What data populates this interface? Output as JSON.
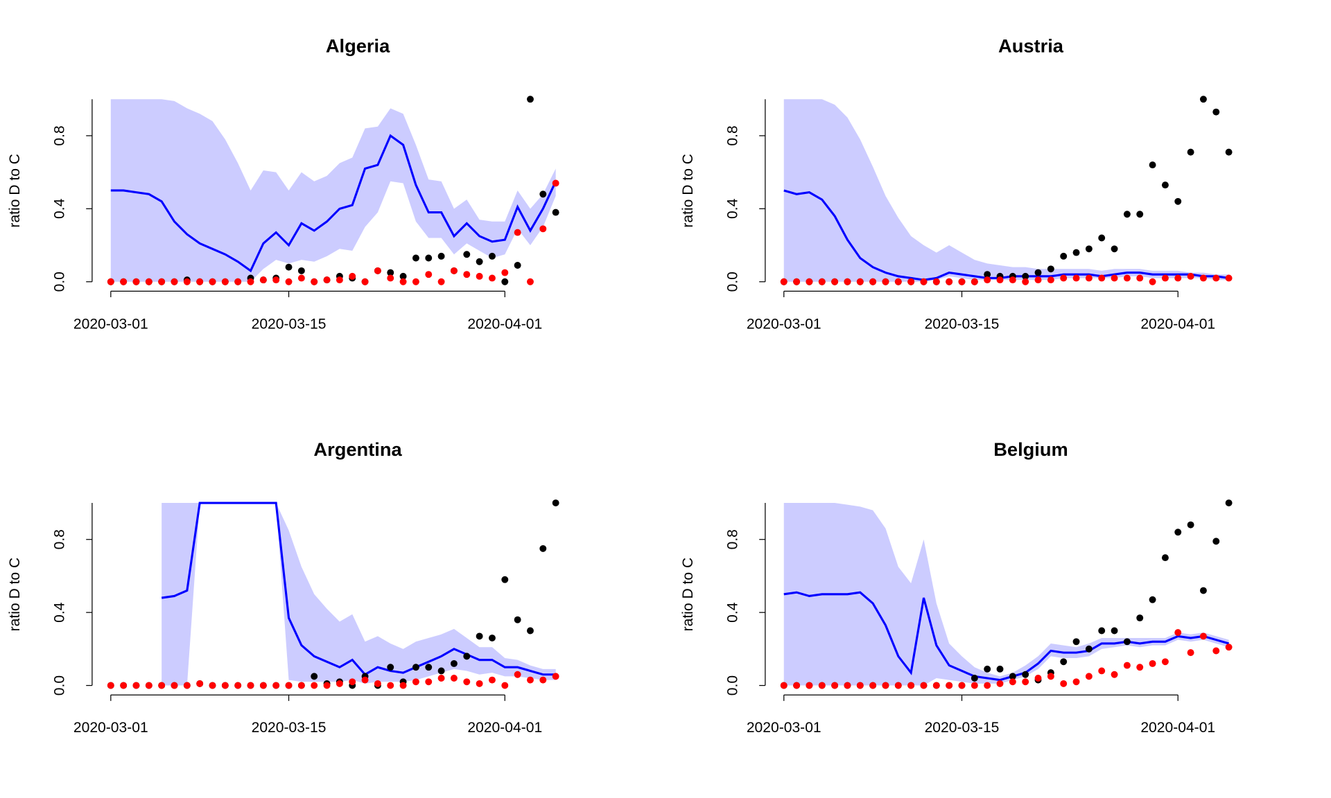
{
  "chart_data": [
    {
      "type": "line",
      "title": "Algeria",
      "y_label": "ratio D to C",
      "x": [
        "2020-03-01",
        "2020-03-02",
        "2020-03-03",
        "2020-03-04",
        "2020-03-05",
        "2020-03-06",
        "2020-03-07",
        "2020-03-08",
        "2020-03-09",
        "2020-03-10",
        "2020-03-11",
        "2020-03-12",
        "2020-03-13",
        "2020-03-14",
        "2020-03-15",
        "2020-03-16",
        "2020-03-17",
        "2020-03-18",
        "2020-03-19",
        "2020-03-20",
        "2020-03-21",
        "2020-03-22",
        "2020-03-23",
        "2020-03-24",
        "2020-03-25",
        "2020-03-26",
        "2020-03-27",
        "2020-03-28",
        "2020-03-29",
        "2020-03-30",
        "2020-03-31",
        "2020-04-01",
        "2020-04-02",
        "2020-04-03",
        "2020-04-04",
        "2020-04-05"
      ],
      "xlim": [
        "2020-03-01",
        "2020-04-05"
      ],
      "xticks": [
        "2020-03-01",
        "2020-03-15",
        "2020-04-01"
      ],
      "ylim": [
        0,
        1
      ],
      "yticks": [
        {
          "value": 0,
          "label": "0.0"
        },
        0.4,
        0.8
      ],
      "band": {
        "color": "#ccccff",
        "upper": [
          1,
          1,
          1,
          1,
          1,
          0.99,
          0.95,
          0.92,
          0.88,
          0.78,
          0.65,
          0.5,
          0.61,
          0.6,
          0.5,
          0.6,
          0.55,
          0.58,
          0.65,
          0.68,
          0.84,
          0.85,
          0.95,
          0.92,
          0.75,
          0.56,
          0.55,
          0.4,
          0.45,
          0.34,
          0.33,
          0.33,
          0.5,
          0.4,
          0.48,
          0.62
        ],
        "lower": [
          0,
          0,
          0,
          0,
          0,
          0,
          0,
          0,
          0,
          0,
          0,
          0,
          0.07,
          0.12,
          0.1,
          0.12,
          0.11,
          0.14,
          0.18,
          0.17,
          0.3,
          0.38,
          0.55,
          0.54,
          0.33,
          0.24,
          0.24,
          0.15,
          0.21,
          0.17,
          0.13,
          0.15,
          0.29,
          0.2,
          0.3,
          0.47
        ]
      },
      "series": [
        {
          "type": "line",
          "color": "#0000ff",
          "values": [
            0.5,
            0.5,
            0.49,
            0.48,
            0.44,
            0.33,
            0.26,
            0.21,
            0.18,
            0.15,
            0.11,
            0.06,
            0.21,
            0.27,
            0.2,
            0.32,
            0.28,
            0.33,
            0.4,
            0.42,
            0.62,
            0.64,
            0.8,
            0.75,
            0.53,
            0.38,
            0.38,
            0.25,
            0.32,
            0.25,
            0.22,
            0.23,
            0.41,
            0.28,
            0.4,
            0.55
          ]
        },
        {
          "type": "scatter",
          "color": "#000000",
          "values": [
            0,
            0,
            0,
            0,
            0,
            0,
            0.01,
            0,
            0,
            0,
            0,
            0.02,
            0.01,
            0.02,
            0.08,
            0.06,
            0,
            0.01,
            0.03,
            0.02,
            0,
            0.06,
            0.05,
            0.03,
            0.13,
            0.13,
            0.14,
            0.06,
            0.15,
            0.11,
            0.14,
            0,
            0.09,
            1,
            0.48,
            0.38
          ]
        },
        {
          "type": "scatter",
          "color": "#ff0000",
          "values": [
            0,
            0,
            0,
            0,
            0,
            0,
            0,
            0,
            0,
            0,
            0,
            0,
            0.01,
            0.01,
            0,
            0.02,
            0,
            0.01,
            0.01,
            0.03,
            0,
            0.06,
            0.02,
            0,
            0,
            0.04,
            0,
            0.06,
            0.04,
            0.03,
            0.02,
            0.05,
            0.27,
            0,
            0.29,
            0.54
          ]
        }
      ]
    },
    {
      "type": "line",
      "title": "Austria",
      "y_label": "ratio D to C",
      "x": [
        "2020-03-01",
        "2020-03-02",
        "2020-03-03",
        "2020-03-04",
        "2020-03-05",
        "2020-03-06",
        "2020-03-07",
        "2020-03-08",
        "2020-03-09",
        "2020-03-10",
        "2020-03-11",
        "2020-03-12",
        "2020-03-13",
        "2020-03-14",
        "2020-03-15",
        "2020-03-16",
        "2020-03-17",
        "2020-03-18",
        "2020-03-19",
        "2020-03-20",
        "2020-03-21",
        "2020-03-22",
        "2020-03-23",
        "2020-03-24",
        "2020-03-25",
        "2020-03-26",
        "2020-03-27",
        "2020-03-28",
        "2020-03-29",
        "2020-03-30",
        "2020-03-31",
        "2020-04-01",
        "2020-04-02",
        "2020-04-03",
        "2020-04-04",
        "2020-04-05"
      ],
      "xlim": [
        "2020-03-01",
        "2020-04-05"
      ],
      "xticks": [
        "2020-03-01",
        "2020-03-15",
        "2020-04-01"
      ],
      "ylim": [
        0,
        1
      ],
      "yticks": [
        {
          "value": 0,
          "label": "0.0"
        },
        0.4,
        0.8
      ],
      "band": {
        "color": "#ccccff",
        "upper": [
          1,
          1,
          1,
          1,
          0.97,
          0.9,
          0.78,
          0.63,
          0.47,
          0.35,
          0.25,
          0.2,
          0.16,
          0.2,
          0.16,
          0.12,
          0.1,
          0.09,
          0.08,
          0.08,
          0.07,
          0.07,
          0.07,
          0.07,
          0.07,
          0.06,
          0.07,
          0.07,
          0.07,
          0.06,
          0.06,
          0.06,
          0.05,
          0.05,
          0.04,
          0.04
        ],
        "lower": [
          0,
          0,
          0,
          0,
          0,
          0,
          0,
          0,
          0,
          0,
          0,
          0,
          0.01,
          0.03,
          0.02,
          0.01,
          0.01,
          0.01,
          0.01,
          0.01,
          0.01,
          0.01,
          0.02,
          0.02,
          0.02,
          0.02,
          0.02,
          0.03,
          0.03,
          0.02,
          0.02,
          0.02,
          0.02,
          0.02,
          0.01,
          0.01
        ]
      },
      "series": [
        {
          "type": "line",
          "color": "#0000ff",
          "values": [
            0.5,
            0.48,
            0.49,
            0.45,
            0.36,
            0.23,
            0.13,
            0.08,
            0.05,
            0.03,
            0.02,
            0.01,
            0.02,
            0.05,
            0.04,
            0.03,
            0.02,
            0.02,
            0.03,
            0.03,
            0.03,
            0.03,
            0.04,
            0.04,
            0.04,
            0.03,
            0.04,
            0.05,
            0.05,
            0.04,
            0.04,
            0.04,
            0.04,
            0.03,
            0.03,
            0.02
          ]
        },
        {
          "type": "scatter",
          "color": "#000000",
          "values": [
            0,
            0,
            0,
            0,
            0,
            0,
            0,
            0,
            0,
            0,
            0,
            0,
            0,
            0,
            0,
            0,
            0.04,
            0.03,
            0.03,
            0.03,
            0.05,
            0.07,
            0.14,
            0.16,
            0.18,
            0.24,
            0.18,
            0.37,
            0.37,
            0.64,
            0.53,
            0.44,
            0.71,
            1,
            0.93,
            0.71
          ]
        },
        {
          "type": "scatter",
          "color": "#ff0000",
          "values": [
            0,
            0,
            0,
            0,
            0,
            0,
            0,
            0,
            0,
            0,
            0,
            0,
            0,
            0,
            0,
            0,
            0.01,
            0.01,
            0.01,
            0,
            0.01,
            0.01,
            0.02,
            0.02,
            0.02,
            0.02,
            0.02,
            0.02,
            0.02,
            0,
            0.02,
            0.02,
            0.03,
            0.02,
            0.02,
            0.02
          ]
        }
      ]
    },
    {
      "type": "line",
      "title": "Argentina",
      "y_label": "ratio D to C",
      "x": [
        "2020-03-01",
        "2020-03-02",
        "2020-03-03",
        "2020-03-04",
        "2020-03-05",
        "2020-03-06",
        "2020-03-07",
        "2020-03-08",
        "2020-03-09",
        "2020-03-10",
        "2020-03-11",
        "2020-03-12",
        "2020-03-13",
        "2020-03-14",
        "2020-03-15",
        "2020-03-16",
        "2020-03-17",
        "2020-03-18",
        "2020-03-19",
        "2020-03-20",
        "2020-03-21",
        "2020-03-22",
        "2020-03-23",
        "2020-03-24",
        "2020-03-25",
        "2020-03-26",
        "2020-03-27",
        "2020-03-28",
        "2020-03-29",
        "2020-03-30",
        "2020-03-31",
        "2020-04-01",
        "2020-04-02",
        "2020-04-03",
        "2020-04-04",
        "2020-04-05"
      ],
      "xlim": [
        "2020-03-01",
        "2020-04-05"
      ],
      "xticks": [
        "2020-03-01",
        "2020-03-15",
        "2020-04-01"
      ],
      "ylim": [
        0,
        1
      ],
      "yticks": [
        {
          "value": 0,
          "label": "0.0"
        },
        0.4,
        0.8
      ],
      "band": {
        "color": "#ccccff",
        "upper": [
          null,
          null,
          null,
          null,
          1,
          1,
          1,
          1,
          1,
          1,
          1,
          1,
          1,
          1,
          0.85,
          0.65,
          0.5,
          0.42,
          0.35,
          0.39,
          0.24,
          0.27,
          0.23,
          0.2,
          0.24,
          0.26,
          0.28,
          0.31,
          0.26,
          0.21,
          0.21,
          0.15,
          0.14,
          0.11,
          0.09,
          0.09
        ],
        "lower": [
          null,
          null,
          null,
          null,
          0,
          0,
          0,
          1,
          1,
          1,
          1,
          1,
          1,
          1,
          0.03,
          0.02,
          0.02,
          0.02,
          0.02,
          0.03,
          0.01,
          0.02,
          0.02,
          0.02,
          0.03,
          0.05,
          0.07,
          0.09,
          0.08,
          0.06,
          0.07,
          0.05,
          0.05,
          0.04,
          0.03,
          0.03
        ]
      },
      "series": [
        {
          "type": "line",
          "color": "#0000ff",
          "values": [
            null,
            null,
            null,
            null,
            0.48,
            0.49,
            0.52,
            1,
            1,
            1,
            1,
            1,
            1,
            1,
            0.37,
            0.22,
            0.16,
            0.13,
            0.1,
            0.14,
            0.06,
            0.1,
            0.08,
            0.07,
            0.1,
            0.13,
            0.16,
            0.2,
            0.17,
            0.14,
            0.14,
            0.1,
            0.1,
            0.08,
            0.06,
            0.06
          ]
        },
        {
          "type": "scatter",
          "color": "#000000",
          "values": [
            0,
            0,
            0,
            0,
            0,
            0,
            0,
            0.01,
            0,
            0,
            0,
            0,
            0,
            0,
            0,
            0,
            0.05,
            0.01,
            0.02,
            0,
            0.05,
            0,
            0.1,
            0.02,
            0.1,
            0.1,
            0.08,
            0.12,
            0.16,
            0.27,
            0.26,
            0.58,
            0.36,
            0.3,
            0.75,
            1
          ]
        },
        {
          "type": "scatter",
          "color": "#ff0000",
          "values": [
            0,
            0,
            0,
            0,
            0,
            0,
            0,
            0.01,
            0,
            0,
            0,
            0,
            0,
            0,
            0,
            0,
            0,
            0,
            0.01,
            0.02,
            0.03,
            0.01,
            0,
            0,
            0.02,
            0.02,
            0.04,
            0.04,
            0.02,
            0.01,
            0.03,
            0,
            0.06,
            0.03,
            0.03,
            0.05
          ]
        }
      ]
    },
    {
      "type": "line",
      "title": "Belgium",
      "y_label": "ratio D to C",
      "x": [
        "2020-03-01",
        "2020-03-02",
        "2020-03-03",
        "2020-03-04",
        "2020-03-05",
        "2020-03-06",
        "2020-03-07",
        "2020-03-08",
        "2020-03-09",
        "2020-03-10",
        "2020-03-11",
        "2020-03-12",
        "2020-03-13",
        "2020-03-14",
        "2020-03-15",
        "2020-03-16",
        "2020-03-17",
        "2020-03-18",
        "2020-03-19",
        "2020-03-20",
        "2020-03-21",
        "2020-03-22",
        "2020-03-23",
        "2020-03-24",
        "2020-03-25",
        "2020-03-26",
        "2020-03-27",
        "2020-03-28",
        "2020-03-29",
        "2020-03-30",
        "2020-03-31",
        "2020-04-01",
        "2020-04-02",
        "2020-04-03",
        "2020-04-04",
        "2020-04-05"
      ],
      "xlim": [
        "2020-03-01",
        "2020-04-05"
      ],
      "xticks": [
        "2020-03-01",
        "2020-03-15",
        "2020-04-01"
      ],
      "ylim": [
        0,
        1
      ],
      "yticks": [
        {
          "value": 0,
          "label": "0.0"
        },
        0.4,
        0.8
      ],
      "band": {
        "color": "#ccccff",
        "upper": [
          1,
          1,
          1,
          1,
          1,
          0.99,
          0.98,
          0.96,
          0.86,
          0.65,
          0.56,
          0.8,
          0.45,
          0.23,
          0.16,
          0.1,
          0.07,
          0.05,
          0.07,
          0.11,
          0.16,
          0.23,
          0.22,
          0.21,
          0.23,
          0.26,
          0.26,
          0.26,
          0.26,
          0.26,
          0.26,
          0.29,
          0.28,
          0.29,
          0.27,
          0.25
        ],
        "lower": [
          0,
          0,
          0,
          0,
          0,
          0,
          0,
          0,
          0,
          0,
          0,
          0,
          0.04,
          0.03,
          0.02,
          0.01,
          0.01,
          0.01,
          0.03,
          0.05,
          0.09,
          0.16,
          0.15,
          0.15,
          0.16,
          0.2,
          0.21,
          0.22,
          0.21,
          0.22,
          0.22,
          0.25,
          0.24,
          0.25,
          0.23,
          0.21
        ]
      },
      "series": [
        {
          "type": "line",
          "color": "#0000ff",
          "values": [
            0.5,
            0.51,
            0.49,
            0.5,
            0.5,
            0.5,
            0.51,
            0.45,
            0.33,
            0.16,
            0.07,
            0.48,
            0.22,
            0.11,
            0.08,
            0.05,
            0.04,
            0.03,
            0.05,
            0.07,
            0.12,
            0.19,
            0.18,
            0.18,
            0.19,
            0.23,
            0.23,
            0.24,
            0.23,
            0.24,
            0.24,
            0.27,
            0.26,
            0.27,
            0.25,
            0.23
          ]
        },
        {
          "type": "scatter",
          "color": "#000000",
          "values": [
            0,
            0,
            0,
            0,
            0,
            0,
            0,
            0,
            0,
            0,
            0,
            0,
            0,
            0,
            0,
            0.04,
            0.09,
            0.09,
            0.05,
            0.06,
            0.03,
            0.07,
            0.13,
            0.24,
            0.2,
            0.3,
            0.3,
            0.24,
            0.37,
            0.47,
            0.7,
            0.84,
            0.88,
            0.52,
            0.79,
            1
          ]
        },
        {
          "type": "scatter",
          "color": "#ff0000",
          "values": [
            0,
            0,
            0,
            0,
            0,
            0,
            0,
            0,
            0,
            0,
            0,
            0,
            0,
            0,
            0,
            0,
            0,
            0.01,
            0.02,
            0.02,
            0.04,
            0.05,
            0.01,
            0.02,
            0.05,
            0.08,
            0.06,
            0.11,
            0.1,
            0.12,
            0.13,
            0.29,
            0.18,
            0.27,
            0.19,
            0.21
          ]
        }
      ]
    }
  ]
}
